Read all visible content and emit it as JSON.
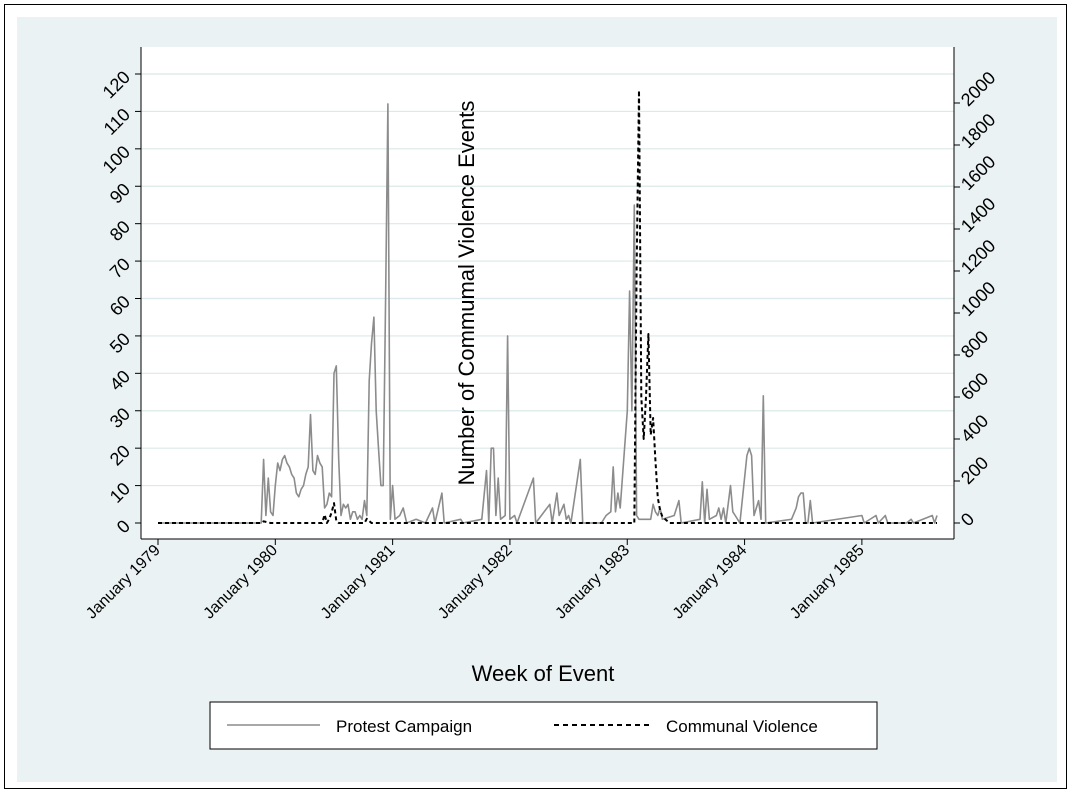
{
  "chart_data": {
    "type": "line",
    "xlabel": "Week of Event",
    "ylabel_left": "",
    "ylabel_right": "Number of Commumal Violence Events",
    "x_ticks": [
      "January 1979",
      "January 1980",
      "January 1981",
      "January 1982",
      "January 1983",
      "January 1984",
      "January 1985"
    ],
    "y_left_ticks": [
      0,
      10,
      20,
      30,
      40,
      50,
      60,
      70,
      80,
      90,
      100,
      110,
      120
    ],
    "y_right_ticks": [
      0,
      200,
      400,
      600,
      800,
      1000,
      1200,
      1400,
      1600,
      1800,
      2000
    ],
    "xlim": [
      1979.0,
      1985.7
    ],
    "ylim_left": [
      0,
      120
    ],
    "ylim_right": [
      0,
      2000
    ],
    "grid": true,
    "legend_position": "bottom",
    "series": [
      {
        "name": "Protest Campaign",
        "axis": "left",
        "color": "#8c8c8c",
        "style": "solid",
        "points": [
          [
            1979.0,
            0
          ],
          [
            1979.88,
            0
          ],
          [
            1979.9,
            17
          ],
          [
            1979.92,
            2
          ],
          [
            1979.94,
            12
          ],
          [
            1979.96,
            3
          ],
          [
            1979.98,
            2
          ],
          [
            1980.0,
            10
          ],
          [
            1980.02,
            16
          ],
          [
            1980.04,
            14
          ],
          [
            1980.06,
            17
          ],
          [
            1980.08,
            18
          ],
          [
            1980.1,
            16
          ],
          [
            1980.12,
            15
          ],
          [
            1980.14,
            13
          ],
          [
            1980.16,
            12
          ],
          [
            1980.18,
            8
          ],
          [
            1980.2,
            7
          ],
          [
            1980.22,
            9
          ],
          [
            1980.24,
            10
          ],
          [
            1980.26,
            13
          ],
          [
            1980.28,
            15
          ],
          [
            1980.3,
            29
          ],
          [
            1980.32,
            14
          ],
          [
            1980.34,
            13
          ],
          [
            1980.36,
            18
          ],
          [
            1980.38,
            16
          ],
          [
            1980.4,
            15
          ],
          [
            1980.42,
            4
          ],
          [
            1980.44,
            5
          ],
          [
            1980.46,
            8
          ],
          [
            1980.48,
            7
          ],
          [
            1980.5,
            40
          ],
          [
            1980.52,
            42
          ],
          [
            1980.54,
            17
          ],
          [
            1980.56,
            2
          ],
          [
            1980.58,
            5
          ],
          [
            1980.6,
            4
          ],
          [
            1980.62,
            5
          ],
          [
            1980.64,
            1
          ],
          [
            1980.66,
            3
          ],
          [
            1980.68,
            3
          ],
          [
            1980.7,
            1
          ],
          [
            1980.72,
            2
          ],
          [
            1980.74,
            1
          ],
          [
            1980.76,
            6
          ],
          [
            1980.78,
            2
          ],
          [
            1980.8,
            38
          ],
          [
            1980.82,
            48
          ],
          [
            1980.84,
            55
          ],
          [
            1980.86,
            30
          ],
          [
            1980.88,
            20
          ],
          [
            1980.9,
            10
          ],
          [
            1980.92,
            10
          ],
          [
            1980.94,
            60
          ],
          [
            1980.96,
            112
          ],
          [
            1980.98,
            1
          ],
          [
            1981.0,
            10
          ],
          [
            1981.02,
            1
          ],
          [
            1981.06,
            2
          ],
          [
            1981.09,
            4
          ],
          [
            1981.12,
            0
          ],
          [
            1981.2,
            1
          ],
          [
            1981.28,
            0
          ],
          [
            1981.34,
            4
          ],
          [
            1981.36,
            0
          ],
          [
            1981.42,
            8
          ],
          [
            1981.44,
            0
          ],
          [
            1981.58,
            1
          ],
          [
            1981.6,
            0
          ],
          [
            1981.76,
            1
          ],
          [
            1981.8,
            14
          ],
          [
            1981.82,
            0
          ],
          [
            1981.84,
            20
          ],
          [
            1981.86,
            20
          ],
          [
            1981.88,
            2
          ],
          [
            1981.9,
            12
          ],
          [
            1981.92,
            1
          ],
          [
            1981.96,
            2
          ],
          [
            1981.98,
            50
          ],
          [
            1982.0,
            1
          ],
          [
            1982.04,
            2
          ],
          [
            1982.06,
            0
          ],
          [
            1982.2,
            12
          ],
          [
            1982.22,
            0
          ],
          [
            1982.34,
            5
          ],
          [
            1982.36,
            0
          ],
          [
            1982.4,
            8
          ],
          [
            1982.42,
            2
          ],
          [
            1982.46,
            5
          ],
          [
            1982.48,
            1
          ],
          [
            1982.5,
            2
          ],
          [
            1982.52,
            0
          ],
          [
            1982.6,
            17
          ],
          [
            1982.62,
            0
          ],
          [
            1982.78,
            0
          ],
          [
            1982.82,
            2
          ],
          [
            1982.86,
            3
          ],
          [
            1982.88,
            15
          ],
          [
            1982.9,
            3
          ],
          [
            1982.92,
            8
          ],
          [
            1982.94,
            4
          ],
          [
            1983.0,
            30
          ],
          [
            1983.02,
            62
          ],
          [
            1983.04,
            30
          ],
          [
            1983.06,
            85
          ],
          [
            1983.08,
            2
          ],
          [
            1983.1,
            1
          ],
          [
            1983.2,
            1
          ],
          [
            1983.22,
            5
          ],
          [
            1983.24,
            3
          ],
          [
            1983.26,
            2
          ],
          [
            1983.28,
            4
          ],
          [
            1983.3,
            1
          ],
          [
            1983.4,
            2
          ],
          [
            1983.44,
            6
          ],
          [
            1983.46,
            0
          ],
          [
            1983.62,
            1
          ],
          [
            1983.64,
            11
          ],
          [
            1983.66,
            0
          ],
          [
            1983.68,
            9
          ],
          [
            1983.7,
            1
          ],
          [
            1983.76,
            2
          ],
          [
            1983.78,
            4
          ],
          [
            1983.8,
            1
          ],
          [
            1983.82,
            4
          ],
          [
            1983.84,
            0
          ],
          [
            1983.88,
            10
          ],
          [
            1983.9,
            3
          ],
          [
            1983.92,
            2
          ],
          [
            1983.96,
            0
          ],
          [
            1984.02,
            18
          ],
          [
            1984.04,
            20
          ],
          [
            1984.06,
            18
          ],
          [
            1984.08,
            2
          ],
          [
            1984.12,
            6
          ],
          [
            1984.14,
            1
          ],
          [
            1984.16,
            34
          ],
          [
            1984.18,
            0
          ],
          [
            1984.4,
            1
          ],
          [
            1984.44,
            4
          ],
          [
            1984.46,
            7
          ],
          [
            1984.48,
            8
          ],
          [
            1984.5,
            8
          ],
          [
            1984.52,
            0
          ],
          [
            1984.54,
            0
          ],
          [
            1984.56,
            6
          ],
          [
            1984.58,
            0
          ],
          [
            1985.0,
            2
          ],
          [
            1985.02,
            0
          ],
          [
            1985.12,
            2
          ],
          [
            1985.14,
            0
          ],
          [
            1985.2,
            2
          ],
          [
            1985.22,
            0
          ],
          [
            1985.38,
            0
          ],
          [
            1985.42,
            1
          ],
          [
            1985.44,
            0
          ],
          [
            1985.6,
            2
          ],
          [
            1985.62,
            0
          ],
          [
            1985.64,
            2
          ]
        ]
      },
      {
        "name": "Communal Violence",
        "axis": "right",
        "color": "#000000",
        "style": "dashed",
        "points": [
          [
            1979.0,
            0
          ],
          [
            1979.88,
            0
          ],
          [
            1979.9,
            8
          ],
          [
            1979.93,
            4
          ],
          [
            1979.96,
            0
          ],
          [
            1980.4,
            0
          ],
          [
            1980.42,
            40
          ],
          [
            1980.44,
            0
          ],
          [
            1980.46,
            20
          ],
          [
            1980.48,
            50
          ],
          [
            1980.5,
            95
          ],
          [
            1980.52,
            10
          ],
          [
            1980.54,
            0
          ],
          [
            1980.76,
            0
          ],
          [
            1980.78,
            20
          ],
          [
            1980.8,
            10
          ],
          [
            1980.82,
            0
          ],
          [
            1981.0,
            0
          ],
          [
            1983.0,
            0
          ],
          [
            1983.06,
            0
          ],
          [
            1983.08,
            1200
          ],
          [
            1983.1,
            2060
          ],
          [
            1983.12,
            600
          ],
          [
            1983.14,
            400
          ],
          [
            1983.16,
            600
          ],
          [
            1983.18,
            900
          ],
          [
            1983.2,
            420
          ],
          [
            1983.22,
            500
          ],
          [
            1983.24,
            300
          ],
          [
            1983.26,
            120
          ],
          [
            1983.28,
            60
          ],
          [
            1983.3,
            30
          ],
          [
            1983.36,
            0
          ],
          [
            1985.64,
            0
          ]
        ]
      }
    ]
  }
}
